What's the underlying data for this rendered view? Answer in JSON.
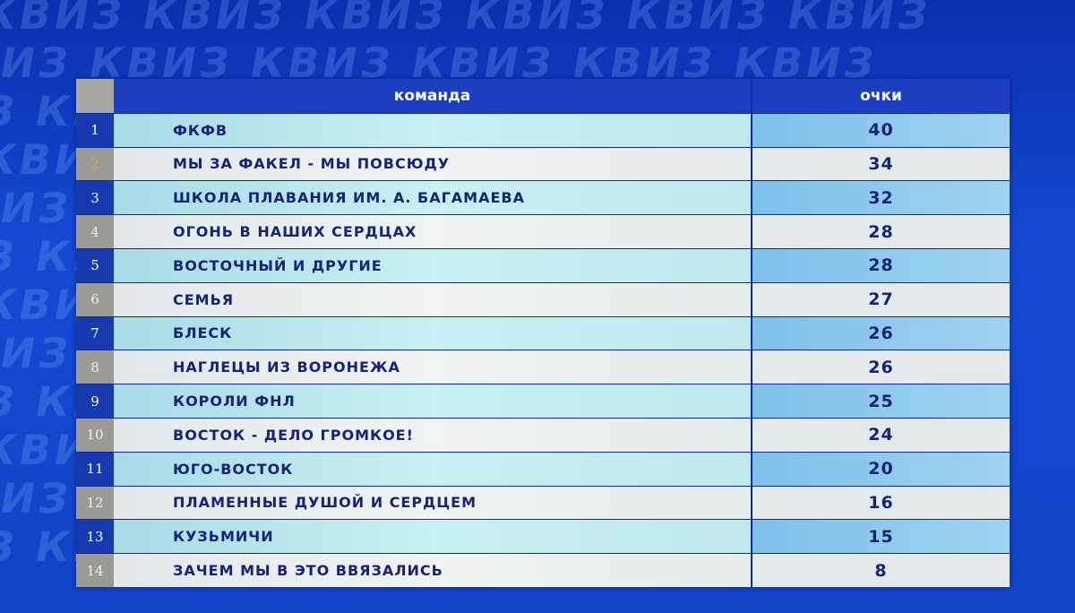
{
  "background": {
    "watermark": "КВИЗ"
  },
  "colors": {
    "header": "#1b3fbf",
    "rank_odd": "#1838b0",
    "rank_even": "#9b9a96",
    "rank_2_highlight": "#f1a72c",
    "text": "#14247a"
  },
  "table": {
    "headers": {
      "team": "команда",
      "points": "очки"
    },
    "rows": [
      {
        "rank": "1",
        "team": "ФКФВ",
        "points": "40"
      },
      {
        "rank": "2",
        "team": "МЫ ЗА ФАКЕЛ - МЫ ПОВСЮДУ",
        "points": "34"
      },
      {
        "rank": "3",
        "team": "ШКОЛА ПЛАВАНИЯ ИМ. А. БАГАМАЕВА",
        "points": "32"
      },
      {
        "rank": "4",
        "team": "ОГОНЬ В НАШИХ СЕРДЦАХ",
        "points": "28"
      },
      {
        "rank": "5",
        "team": "ВОСТОЧНЫЙ И ДРУГИЕ",
        "points": "28"
      },
      {
        "rank": "6",
        "team": "СЕМЬЯ",
        "points": "27"
      },
      {
        "rank": "7",
        "team": "БЛЕСК",
        "points": "26"
      },
      {
        "rank": "8",
        "team": "НАГЛЕЦЫ ИЗ ВОРОНЕЖА",
        "points": "26"
      },
      {
        "rank": "9",
        "team": "КОРОЛИ ФНЛ",
        "points": "25"
      },
      {
        "rank": "10",
        "team": "ВОСТОК - ДЕЛО ГРОМКОЕ!",
        "points": "24"
      },
      {
        "rank": "11",
        "team": "ЮГО-ВОСТОК",
        "points": "20"
      },
      {
        "rank": "12",
        "team": "ПЛАМЕННЫЕ ДУШОЙ И СЕРДЦЕМ",
        "points": "16"
      },
      {
        "rank": "13",
        "team": "КУЗЬМИЧИ",
        "points": "15"
      },
      {
        "rank": "14",
        "team": "ЗАЧЕМ МЫ В ЭТО ВВЯЗАЛИСЬ",
        "points": "8"
      }
    ]
  }
}
